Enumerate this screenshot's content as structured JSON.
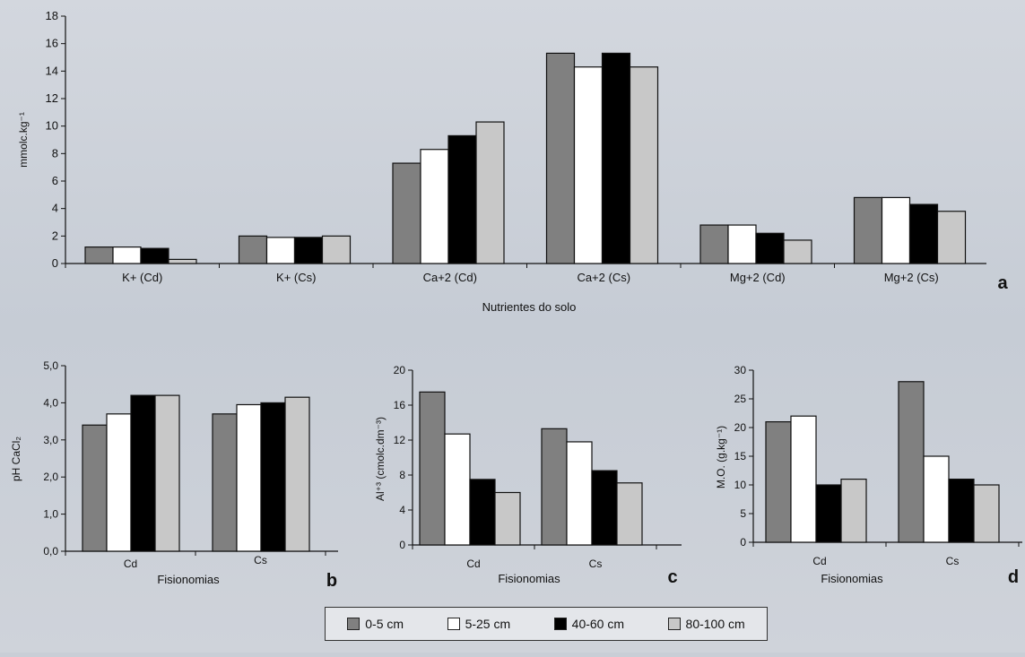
{
  "legend": [
    {
      "label": "0-5 cm",
      "color": "#808080"
    },
    {
      "label": "5-25 cm",
      "color": "#ffffff"
    },
    {
      "label": "40-60 cm",
      "color": "#000000"
    },
    {
      "label": "80-100 cm",
      "color": "#c8c8c8"
    }
  ],
  "chart_data": [
    {
      "id": "a",
      "panel_label": "a",
      "type": "bar",
      "title": "",
      "xlabel": "Nutrientes do solo",
      "ylabel": "mmolc.kg⁻¹",
      "ylim": [
        0,
        18
      ],
      "yticks": [
        0,
        2,
        4,
        6,
        8,
        10,
        12,
        14,
        16,
        18
      ],
      "ytick_labels": [
        "0",
        "2",
        "4",
        "6",
        "8",
        "10",
        "12",
        "14",
        "16",
        "18"
      ],
      "categories": [
        "K+ (Cd)",
        "K+ (Cs)",
        "Ca+2 (Cd)",
        "Ca+2 (Cs)",
        "Mg+2 (Cd)",
        "Mg+2 (Cs)"
      ],
      "series": [
        {
          "name": "0-5 cm",
          "values": [
            1.2,
            2.0,
            7.3,
            15.3,
            2.8,
            4.8
          ]
        },
        {
          "name": "5-25 cm",
          "values": [
            1.2,
            1.9,
            8.3,
            14.3,
            2.8,
            4.8
          ]
        },
        {
          "name": "40-60 cm",
          "values": [
            1.1,
            1.9,
            9.3,
            15.3,
            2.2,
            4.3
          ]
        },
        {
          "name": "80-100 cm",
          "values": [
            0.3,
            2.0,
            10.3,
            14.3,
            1.7,
            3.8
          ]
        }
      ]
    },
    {
      "id": "b",
      "panel_label": "b",
      "type": "bar",
      "title": "",
      "xlabel": "Fisionomias",
      "ylabel": "pH CaCl₂",
      "ylim": [
        0,
        5
      ],
      "yticks": [
        0,
        1,
        2,
        3,
        4,
        5
      ],
      "ytick_labels": [
        "0,0",
        "1,0",
        "2,0",
        "3,0",
        "4,0",
        "5,0"
      ],
      "categories": [
        "Cd",
        "Cs"
      ],
      "series": [
        {
          "name": "0-5 cm",
          "values": [
            3.4,
            3.7
          ]
        },
        {
          "name": "5-25 cm",
          "values": [
            3.7,
            3.95
          ]
        },
        {
          "name": "40-60 cm",
          "values": [
            4.2,
            4.0
          ]
        },
        {
          "name": "80-100 cm",
          "values": [
            4.2,
            4.15
          ]
        }
      ]
    },
    {
      "id": "c",
      "panel_label": "c",
      "type": "bar",
      "title": "",
      "xlabel": "Fisionomias",
      "ylabel": "Al⁺³ (cmolc.dm⁻³)",
      "ylim": [
        0,
        20
      ],
      "yticks": [
        0,
        4,
        8,
        12,
        16,
        20
      ],
      "ytick_labels": [
        "0",
        "4",
        "8",
        "12",
        "16",
        "20"
      ],
      "categories": [
        "Cd",
        "Cs"
      ],
      "series": [
        {
          "name": "0-5 cm",
          "values": [
            17.5,
            13.3
          ]
        },
        {
          "name": "5-25 cm",
          "values": [
            12.7,
            11.8
          ]
        },
        {
          "name": "40-60 cm",
          "values": [
            7.5,
            8.5
          ]
        },
        {
          "name": "80-100 cm",
          "values": [
            6.0,
            7.1
          ]
        }
      ]
    },
    {
      "id": "d",
      "panel_label": "d",
      "type": "bar",
      "title": "",
      "xlabel": "Fisionomias",
      "ylabel": "M.O. (g.kg⁻¹)",
      "ylim": [
        0,
        30
      ],
      "yticks": [
        0,
        5,
        10,
        15,
        20,
        25,
        30
      ],
      "ytick_labels": [
        "0",
        "5",
        "10",
        "15",
        "20",
        "25",
        "30"
      ],
      "categories": [
        "Cd",
        "Cs"
      ],
      "series": [
        {
          "name": "0-5 cm",
          "values": [
            21,
            28
          ]
        },
        {
          "name": "5-25 cm",
          "values": [
            22,
            15
          ]
        },
        {
          "name": "40-60 cm",
          "values": [
            10,
            11
          ]
        },
        {
          "name": "80-100 cm",
          "values": [
            11,
            10
          ]
        }
      ]
    }
  ]
}
